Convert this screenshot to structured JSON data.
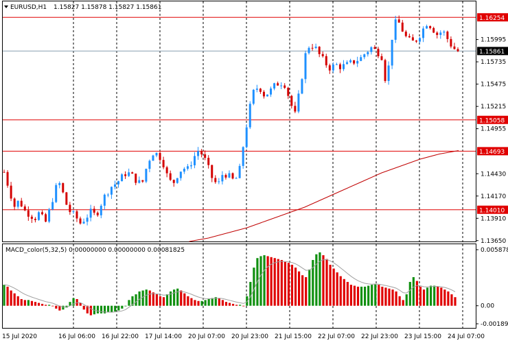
{
  "header": {
    "symbol_label": "EURUSD,H1",
    "ohlc": "1.15827 1.15878 1.15827 1.15861",
    "indicator_label": "MACD_color(5,32,5) 0.00000000 0.00000000 0.00081825"
  },
  "colors": {
    "bull": "#1e90ff",
    "bear": "#d40000",
    "hline": "#e00000",
    "ma": "#c00000",
    "hist_pos": "#e00000",
    "hist_neg": "#109010",
    "signal": "#a0a0a0",
    "current_tag": "#000000"
  },
  "chart_data": {
    "type": "candlestick",
    "price_axis": {
      "range": [
        1.1364,
        1.1644
      ],
      "ticks": [
        "1.15995",
        "1.15735",
        "1.15475",
        "1.15215",
        "1.14955",
        "1.14430",
        "1.14170",
        "1.13910",
        "1.13650"
      ]
    },
    "price_levels": [
      {
        "label": "1.16254",
        "value": 1.16254
      },
      {
        "label": "1.15058",
        "value": 1.15058
      },
      {
        "label": "1.14693",
        "value": 1.14693
      },
      {
        "label": "1.14010",
        "value": 1.1401
      }
    ],
    "current_price": {
      "label": "1.15861",
      "value": 1.15861
    },
    "time_labels": [
      "15 Jul 2020",
      "16 Jul 06:00",
      "16 Jul 22:00",
      "17 Jul 14:00",
      "20 Jul 07:00",
      "20 Jul 23:00",
      "21 Jul 15:00",
      "22 Jul 07:00",
      "22 Jul 23:00",
      "23 Jul 15:00",
      "24 Jul 07:00"
    ],
    "close_path": [
      1.1445,
      1.1425,
      1.1405,
      1.1412,
      1.14,
      1.1396,
      1.1391,
      1.1398,
      1.1384,
      1.1402,
      1.1425,
      1.1432,
      1.141,
      1.1398,
      1.1393,
      1.1385,
      1.1392,
      1.1398,
      1.1394,
      1.1408,
      1.142,
      1.1428,
      1.1432,
      1.1438,
      1.1445,
      1.1441,
      1.1435,
      1.143,
      1.1452,
      1.1468,
      1.1466,
      1.146,
      1.144,
      1.143,
      1.1442,
      1.145,
      1.1448,
      1.146,
      1.147,
      1.1465,
      1.145,
      1.1435,
      1.143,
      1.1445,
      1.144,
      1.1435,
      1.144,
      1.148,
      1.1515,
      1.154,
      1.1545,
      1.1535,
      1.1538,
      1.1545,
      1.155,
      1.1548,
      1.153,
      1.151,
      1.154,
      1.158,
      1.1595,
      1.159,
      1.158,
      1.1572,
      1.1566,
      1.157,
      1.1568,
      1.1569,
      1.1572,
      1.1575,
      1.1578,
      1.1585,
      1.159,
      1.1586,
      1.1582,
      1.1545,
      1.16,
      1.1624,
      1.1612,
      1.16,
      1.1596,
      1.16,
      1.161,
      1.162,
      1.1613,
      1.1605,
      1.161,
      1.16,
      1.159,
      1.1586
    ],
    "ma_path": [
      1.1364,
      1.1368,
      1.1374,
      1.138,
      1.1388,
      1.1396,
      1.1404,
      1.1414,
      1.1424,
      1.1434,
      1.1444,
      1.1452,
      1.146,
      1.1466,
      1.147
    ],
    "ma_start_fraction": 0.4,
    "macd": {
      "axis_ticks": [
        "0.0058783",
        "0.00",
        "-0.001892"
      ],
      "range": [
        -0.001892,
        0.0058783
      ],
      "values": [
        0.0022,
        0.002,
        0.0016,
        0.0013,
        0.001,
        0.0007,
        0.0006,
        0.0006,
        0.0005,
        0.0004,
        0.0003,
        0.0002,
        0.0001,
        0.0001,
        0.0,
        -0.0003,
        -0.0005,
        -0.0004,
        -0.0002,
        0.0004,
        0.0008,
        0.0007,
        0.0003,
        -0.0004,
        -0.0008,
        -0.001,
        -0.0009,
        -0.0008,
        -0.0008,
        -0.0008,
        -0.0007,
        -0.0007,
        -0.0006,
        -0.0005,
        -0.0003,
        0.0,
        0.0006,
        0.001,
        0.0012,
        0.0015,
        0.0016,
        0.0017,
        0.0016,
        0.0014,
        0.0012,
        0.001,
        0.0009,
        0.0012,
        0.0015,
        0.0017,
        0.0018,
        0.0016,
        0.0013,
        0.001,
        0.0008,
        0.0006,
        0.0005,
        0.0005,
        0.0006,
        0.0007,
        0.0008,
        0.0009,
        0.0008,
        0.0006,
        0.0004,
        0.0003,
        0.0002,
        0.0001,
        0.0001,
        0.0,
        0.001,
        0.0025,
        0.004,
        0.005,
        0.0052,
        0.0053,
        0.0052,
        0.0051,
        0.005,
        0.0049,
        0.0048,
        0.0046,
        0.0045,
        0.0043,
        0.004,
        0.0036,
        0.0032,
        0.003,
        0.0038,
        0.0048,
        0.0054,
        0.0056,
        0.0053,
        0.0049,
        0.0043,
        0.0039,
        0.0035,
        0.0031,
        0.0028,
        0.0025,
        0.0022,
        0.0021,
        0.002,
        0.002,
        0.002,
        0.0021,
        0.0022,
        0.0023,
        0.0022,
        0.002,
        0.0019,
        0.0018,
        0.0017,
        0.0015,
        0.001,
        0.0006,
        0.0012,
        0.0025,
        0.003,
        0.0026,
        0.002,
        0.0017,
        0.0019,
        0.0021,
        0.0021,
        0.002,
        0.0019,
        0.0017,
        0.0015,
        0.0012,
        0.0009
      ]
    }
  }
}
